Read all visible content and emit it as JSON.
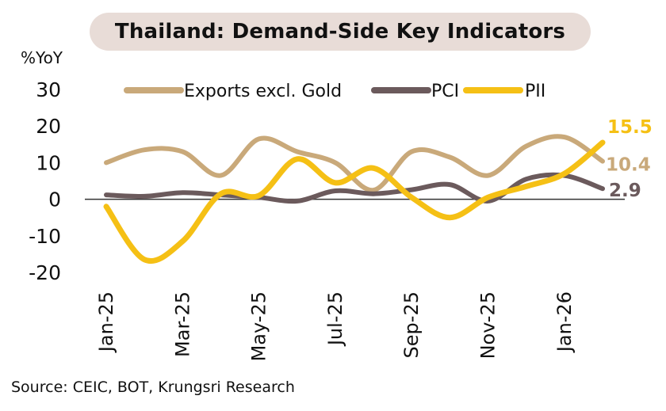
{
  "chart_data": {
    "type": "line",
    "title": "Thailand: Demand-Side Key Indicators",
    "ylabel": "%YoY",
    "ylim": [
      -20,
      30
    ],
    "yticks": [
      30,
      20,
      10,
      0,
      -10,
      -20
    ],
    "x": [
      "Jan-25",
      "Feb-25",
      "Mar-25",
      "Apr-25",
      "May-25",
      "Jun-25",
      "Jul-25",
      "Aug-25",
      "Sep-25",
      "Oct-25",
      "Nov-25",
      "Dec-25",
      "Jan-26",
      "Feb-26"
    ],
    "xtick_labels": [
      "Jan-25",
      "Mar-25",
      "May-25",
      "Jul-25",
      "Sep-25",
      "Nov-25",
      "Jan-26"
    ],
    "xtick_indices": [
      0,
      2,
      4,
      6,
      8,
      10,
      12
    ],
    "legend_position": "top",
    "grid": false,
    "series": [
      {
        "name": "Exports excl. Gold",
        "color": "#c9a97a",
        "values": [
          10,
          13.5,
          13,
          6.5,
          16.5,
          13,
          10,
          2.5,
          13,
          11.5,
          6.5,
          14.5,
          17,
          10.4
        ],
        "end_label": "10.4"
      },
      {
        "name": "PCI",
        "color": "#6b5a5c",
        "values": [
          1.2,
          0.8,
          1.8,
          1.2,
          0.5,
          -0.5,
          2.3,
          1.5,
          2.6,
          4,
          -0.5,
          5.5,
          6.5,
          2.9
        ],
        "end_label": "2.9"
      },
      {
        "name": "PII",
        "color": "#f5c015",
        "values": [
          -2,
          -16.5,
          -11.5,
          1.5,
          1,
          11,
          4.5,
          8.5,
          0.5,
          -5,
          0.5,
          3.5,
          7,
          15.5
        ],
        "end_label": "15.5"
      }
    ]
  },
  "source_text": "Source: CEIC, BOT, Krungsri Research"
}
